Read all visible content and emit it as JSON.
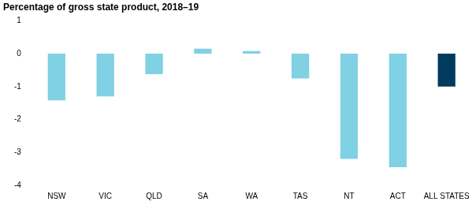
{
  "chart_data": {
    "type": "bar",
    "title": "Percentage of gross state product, 2018–19",
    "categories": [
      "NSW",
      "VIC",
      "QLD",
      "SA",
      "WA",
      "TAS",
      "NT",
      "ACT",
      "ALL STATES"
    ],
    "values": [
      -1.42,
      -1.3,
      -0.62,
      0.15,
      0.08,
      -0.75,
      -3.2,
      -3.45,
      -1.0
    ],
    "colors": [
      "#7fd1e3",
      "#7fd1e3",
      "#7fd1e3",
      "#7fd1e3",
      "#7fd1e3",
      "#7fd1e3",
      "#7fd1e3",
      "#7fd1e3",
      "#003a5d"
    ],
    "ylim": [
      -4,
      1
    ],
    "yticks": [
      -4,
      -3,
      -2,
      -1,
      0,
      1
    ],
    "grid": false
  }
}
